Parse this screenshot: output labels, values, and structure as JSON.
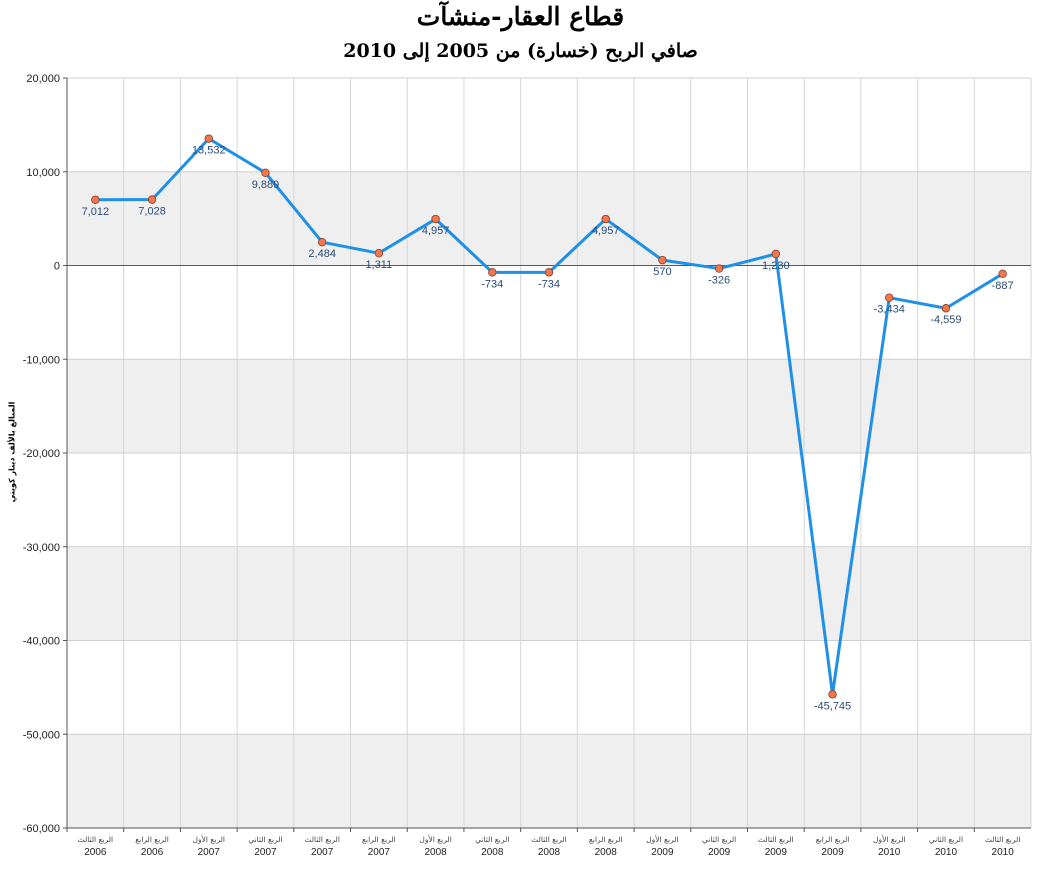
{
  "chart_data": {
    "type": "line",
    "title": "قطاع العقار-منشآت",
    "subtitle": "صافي الربح (خسارة) من 2005 إلى 2010",
    "ylabel": "المبالغ بالألف دينار كويتي",
    "xlabel": "",
    "ylim": [
      -60000,
      20000
    ],
    "yticks": [
      "20,000",
      "10,000",
      "0",
      "-10,000",
      "-20,000",
      "-30,000",
      "-40,000",
      "-50,000",
      "-60,000"
    ],
    "grid": "horizontal bands and vertical lines",
    "colors": {
      "line": "#1e90e8",
      "marker": "#f07850",
      "zero_line": "#e02020",
      "band": "#efefef"
    },
    "categories": [
      {
        "quarter": "الربع الثالث",
        "year": "2006"
      },
      {
        "quarter": "الربع الرابع",
        "year": "2006"
      },
      {
        "quarter": "الربع الأول",
        "year": "2007"
      },
      {
        "quarter": "الربع الثاني",
        "year": "2007"
      },
      {
        "quarter": "الربع الثالث",
        "year": "2007"
      },
      {
        "quarter": "الربع الرابع",
        "year": "2007"
      },
      {
        "quarter": "الربع الأول",
        "year": "2008"
      },
      {
        "quarter": "الربع الثاني",
        "year": "2008"
      },
      {
        "quarter": "الربع الثالث",
        "year": "2008"
      },
      {
        "quarter": "الربع الرابع",
        "year": "2008"
      },
      {
        "quarter": "الربع الأول",
        "year": "2009"
      },
      {
        "quarter": "الربع الثاني",
        "year": "2009"
      },
      {
        "quarter": "الربع الثالث",
        "year": "2009"
      },
      {
        "quarter": "الربع الرابع",
        "year": "2009"
      },
      {
        "quarter": "الربع الأول",
        "year": "2010"
      },
      {
        "quarter": "الربع الثاني",
        "year": "2010"
      },
      {
        "quarter": "الربع الثالث",
        "year": "2010"
      }
    ],
    "values": [
      7012,
      7028,
      13532,
      9889,
      2484,
      1311,
      4957,
      -734,
      -734,
      4957,
      570,
      -326,
      1230,
      -45745,
      -3434,
      -4559,
      -887
    ],
    "labels": [
      "7,012",
      "7,028",
      "13,532",
      "9,889",
      "2,484",
      "1,311",
      "4,957",
      "-734",
      "-734",
      "4,957",
      "570",
      "-326",
      "1,230",
      "-45,745",
      "-3,434",
      "-4,559",
      "-887"
    ]
  }
}
